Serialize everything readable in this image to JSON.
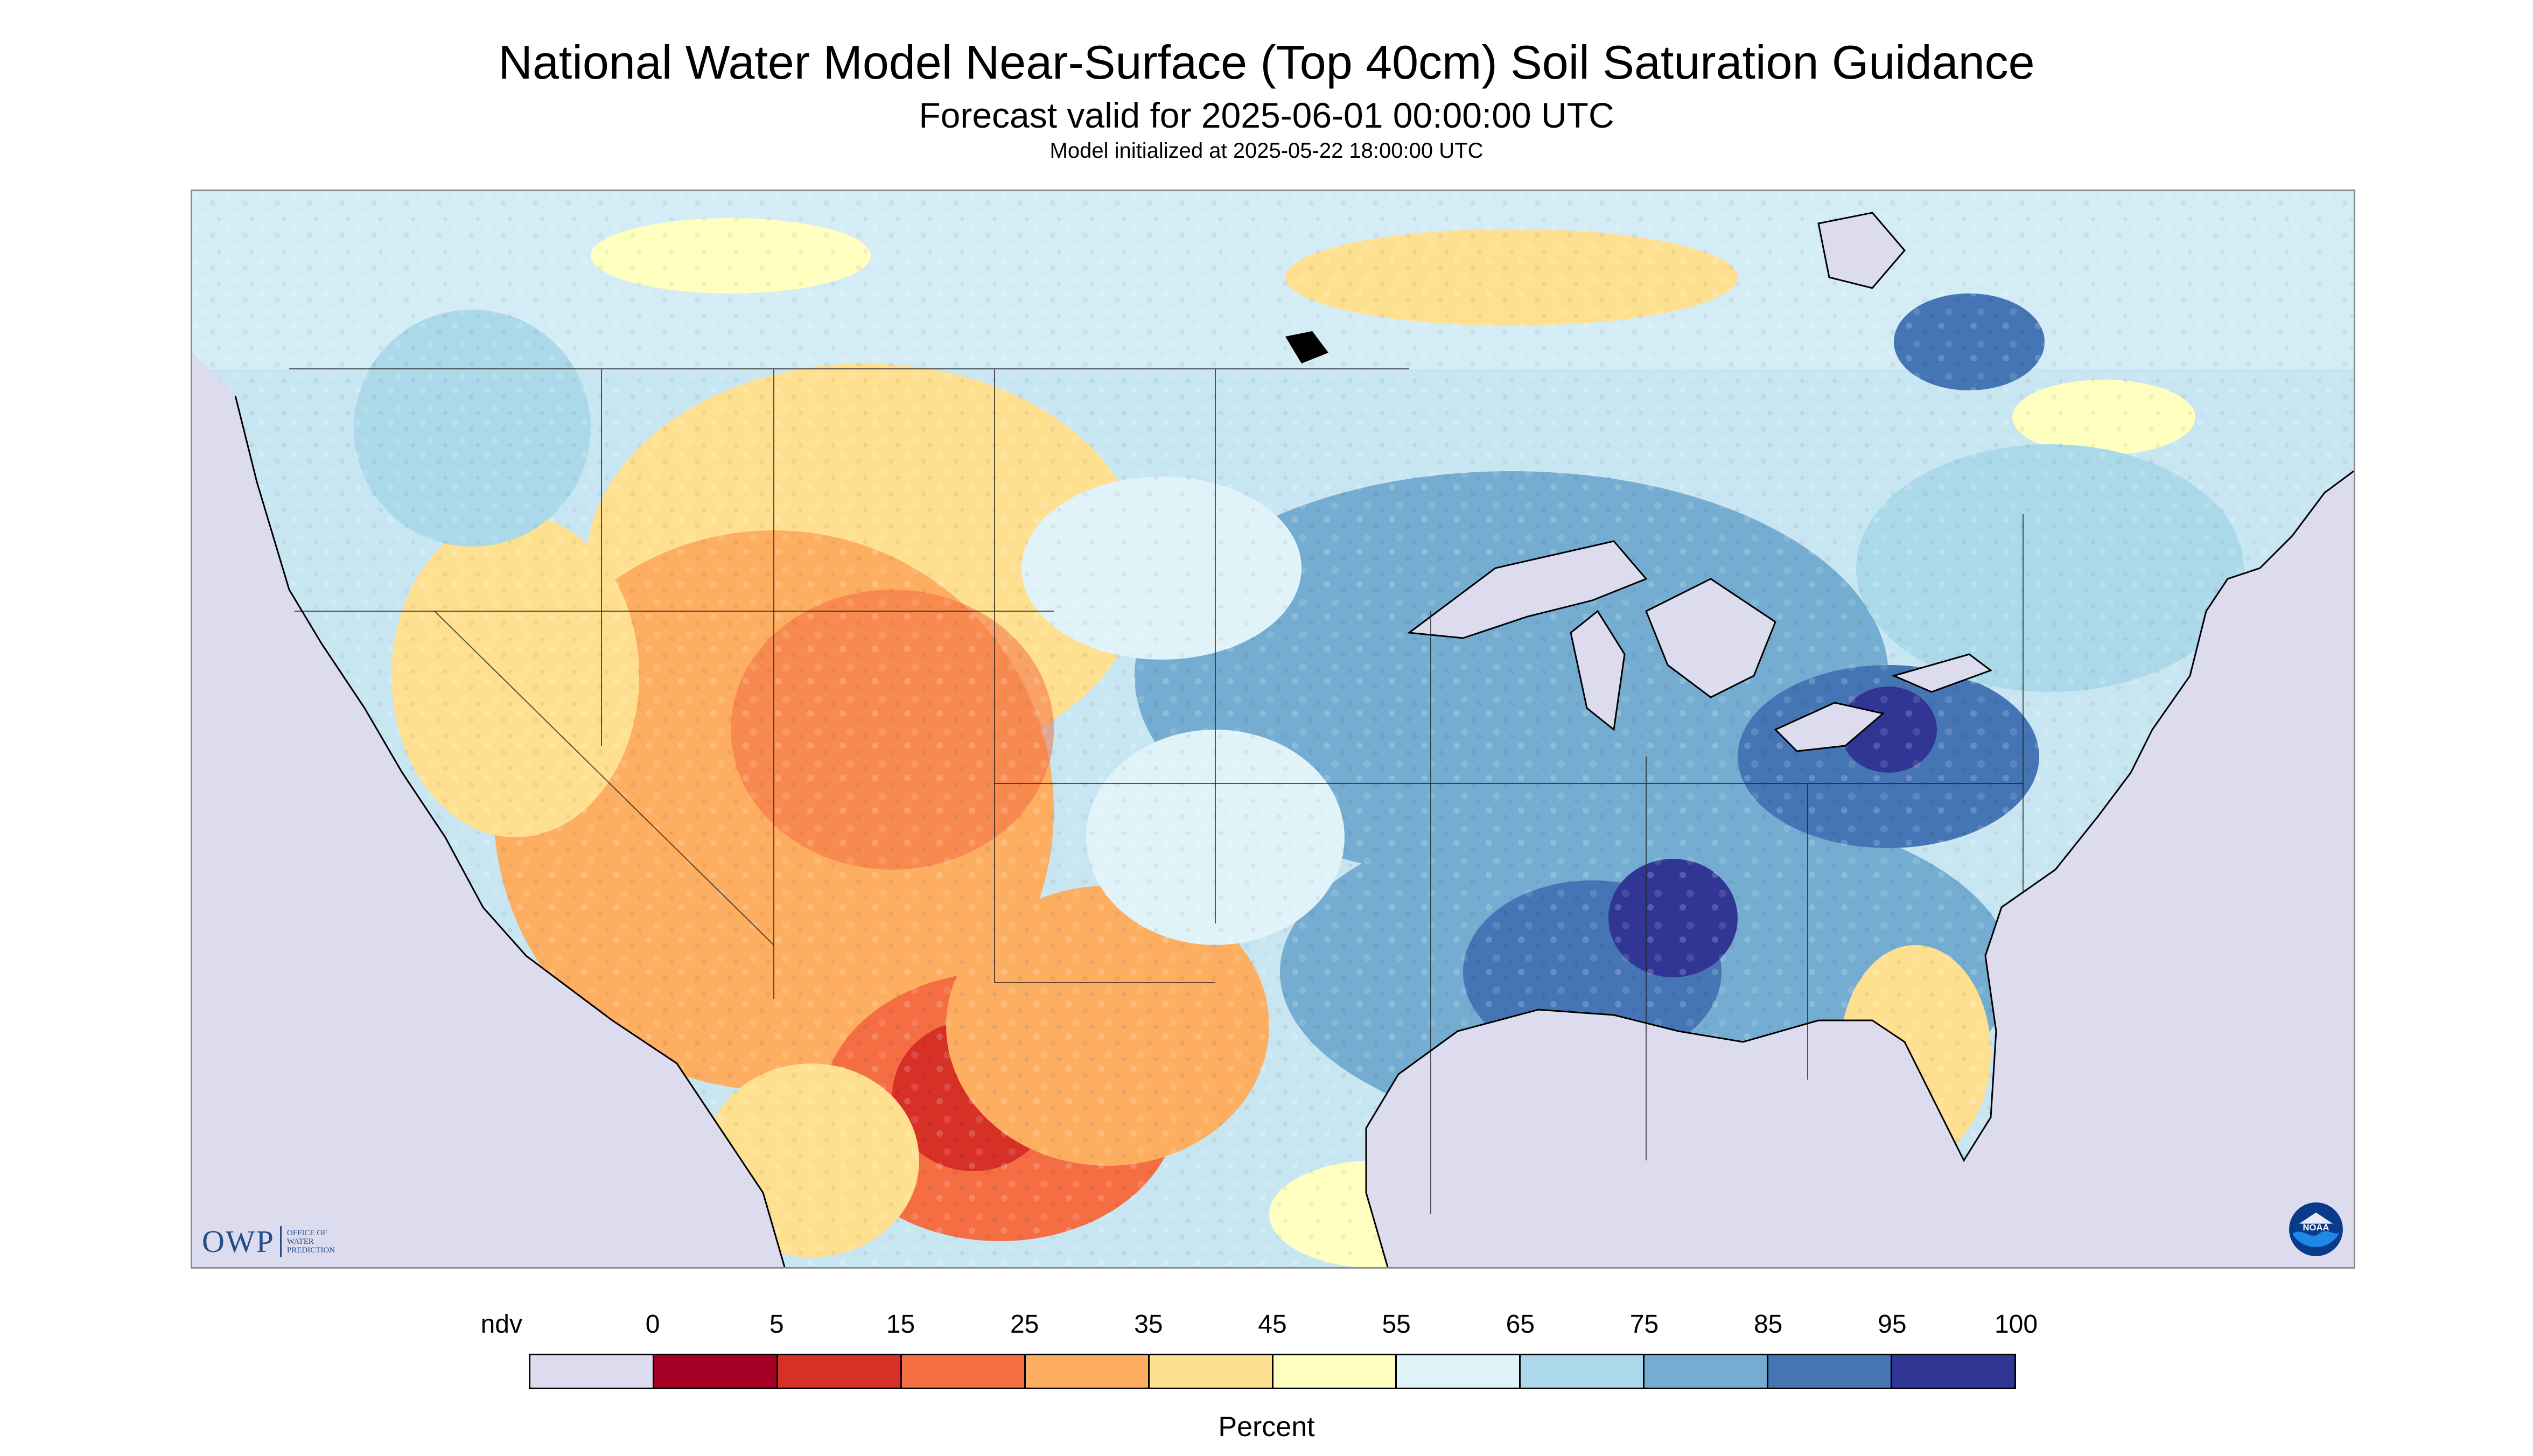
{
  "header": {
    "title": "National Water Model Near-Surface (Top 40cm) Soil Saturation Guidance",
    "subtitle": "Forecast valid for 2025-06-01 00:00:00 UTC",
    "init_line": "Model initialized at 2025-05-22 18:00:00 UTC"
  },
  "logos": {
    "owp_text": "OWP",
    "owp_small": [
      "OFFICE OF",
      "WATER",
      "PREDICTION"
    ],
    "noaa_text": "NOAA"
  },
  "legend": {
    "labels": [
      "ndv",
      "0",
      "5",
      "15",
      "25",
      "35",
      "45",
      "55",
      "65",
      "75",
      "85",
      "95",
      "100"
    ],
    "bins": [
      {
        "color": "#dcdcee"
      },
      {
        "color": "#a50026"
      },
      {
        "color": "#d73027"
      },
      {
        "color": "#f46d43"
      },
      {
        "color": "#fdae61"
      },
      {
        "color": "#fee090"
      },
      {
        "color": "#ffffbf"
      },
      {
        "color": "#e0f3f8"
      },
      {
        "color": "#abd9e9"
      },
      {
        "color": "#74add1"
      },
      {
        "color": "#4575b4"
      },
      {
        "color": "#313695"
      }
    ],
    "units": "Percent"
  }
}
